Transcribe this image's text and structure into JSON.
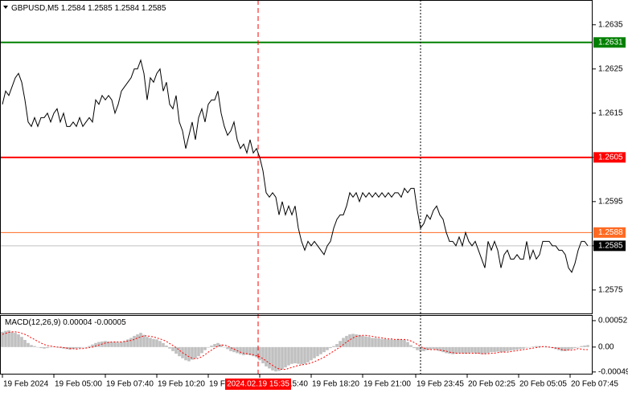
{
  "chart_data": [
    {
      "type": "line",
      "symbol": "GBPUSD,M5",
      "ohlc": [
        1.2584,
        1.2585,
        1.2584,
        1.2585
      ],
      "xlim": [
        132.5,
        1975
      ],
      "ylim": [
        1.25697,
        1.26406
      ],
      "yticks": [
        1.2575,
        1.2585,
        1.2595,
        1.2605,
        1.2615,
        1.2625,
        1.2635
      ],
      "x": [
        140,
        150,
        160,
        170,
        180,
        190,
        200,
        210,
        220,
        230,
        240,
        250,
        260,
        270,
        280,
        290,
        300,
        310,
        320,
        330,
        340,
        350,
        360,
        370,
        380,
        390,
        400,
        410,
        420,
        430,
        440,
        450,
        460,
        470,
        480,
        490,
        500,
        510,
        520,
        530,
        540,
        550,
        560,
        570,
        580,
        590,
        600,
        610,
        620,
        630,
        640,
        650,
        660,
        670,
        680,
        690,
        700,
        710,
        720,
        730,
        740,
        750,
        760,
        770,
        780,
        790,
        800,
        810,
        820,
        830,
        840,
        850,
        860,
        870,
        880,
        890,
        900,
        910,
        920,
        930,
        940,
        950,
        960,
        970,
        980,
        990,
        1000,
        1010,
        1020,
        1030,
        1040,
        1050,
        1060,
        1070,
        1080,
        1090,
        1100,
        1110,
        1120,
        1130,
        1140,
        1150,
        1160,
        1170,
        1180,
        1190,
        1200,
        1210,
        1220,
        1230,
        1240,
        1250,
        1260,
        1270,
        1280,
        1290,
        1300,
        1310,
        1320,
        1330,
        1340,
        1350,
        1360,
        1370,
        1380,
        1390,
        1400,
        1410,
        1420,
        1430,
        1440,
        1450,
        1460,
        1470,
        1480,
        1490,
        1500,
        1510,
        1520,
        1530,
        1540,
        1550,
        1560,
        1570,
        1580,
        1590,
        1600,
        1610,
        1620,
        1630,
        1640,
        1650,
        1660,
        1670,
        1680,
        1690,
        1700,
        1710,
        1720,
        1730,
        1740,
        1750,
        1760,
        1770,
        1780,
        1790,
        1800,
        1810,
        1820,
        1830,
        1840,
        1850,
        1860,
        1870,
        1880,
        1890,
        1900,
        1910,
        1920,
        1930,
        1940,
        1950,
        1960
      ],
      "series": [
        {
          "color": "#000000",
          "values": [
            1.2617,
            1.262,
            1.2619,
            1.2621,
            1.2623,
            1.2624,
            1.2622,
            1.2618,
            1.2613,
            1.2612,
            1.2614,
            1.2612,
            1.2614,
            1.2614,
            1.2615,
            1.2613,
            1.2615,
            1.2616,
            1.2613,
            1.2615,
            1.2612,
            1.2612,
            1.2613,
            1.2612,
            1.2614,
            1.2612,
            1.2613,
            1.2614,
            1.2613,
            1.2618,
            1.2617,
            1.2619,
            1.2618,
            1.2619,
            1.2618,
            1.2615,
            1.2617,
            1.262,
            1.2621,
            1.2622,
            1.2623,
            1.2625,
            1.2625,
            1.2627,
            1.2624,
            1.2618,
            1.2623,
            1.2622,
            1.2624,
            1.2625,
            1.262,
            1.2622,
            1.2617,
            1.2616,
            1.2619,
            1.2613,
            1.2611,
            1.2607,
            1.261,
            1.2613,
            1.2609,
            1.2614,
            1.2616,
            1.2613,
            1.2617,
            1.2618,
            1.2618,
            1.262,
            1.2615,
            1.2612,
            1.261,
            1.2611,
            1.2613,
            1.2609,
            1.2607,
            1.2608,
            1.2606,
            1.2609,
            1.2606,
            1.2607,
            1.2605,
            1.2602,
            1.2597,
            1.2596,
            1.2597,
            1.2596,
            1.2592,
            1.2595,
            1.2592,
            1.2594,
            1.2592,
            1.2594,
            1.2589,
            1.2586,
            1.2584,
            1.2586,
            1.2585,
            1.2586,
            1.2585,
            1.2584,
            1.2583,
            1.2585,
            1.2586,
            1.2589,
            1.2591,
            1.2592,
            1.2592,
            1.2594,
            1.2597,
            1.2596,
            1.2597,
            1.2595,
            1.2597,
            1.2596,
            1.2597,
            1.2596,
            1.2597,
            1.2596,
            1.2597,
            1.2596,
            1.2597,
            1.2596,
            1.2597,
            1.2597,
            1.2596,
            1.2598,
            1.2597,
            1.2598,
            1.2598,
            1.2593,
            1.2589,
            1.259,
            1.2592,
            1.2591,
            1.2593,
            1.2594,
            1.2592,
            1.2591,
            1.2588,
            1.2586,
            1.2586,
            1.2585,
            1.2587,
            1.2585,
            1.2588,
            1.2586,
            1.2585,
            1.2586,
            1.2584,
            1.2582,
            1.258,
            1.2586,
            1.2584,
            1.2586,
            1.2584,
            1.258,
            1.2583,
            1.2584,
            1.2582,
            1.2582,
            1.2583,
            1.2582,
            1.2582,
            1.2586,
            1.2582,
            1.2584,
            1.2582,
            1.2583,
            1.2586,
            1.2586,
            1.2586,
            1.2585,
            1.2585,
            1.2584,
            1.2584,
            1.2583,
            1.258,
            1.2579,
            1.2581,
            1.2584,
            1.2586,
            1.2586,
            1.2585
          ]
        }
      ],
      "levels": [
        {
          "value": 1.2631,
          "color": "#008000",
          "width": 2
        },
        {
          "value": 1.2605,
          "color": "#ff0000",
          "width": 2
        },
        {
          "value": 1.2588,
          "color": "#ff6a22",
          "width": 1
        }
      ],
      "last_price": 1.2585,
      "vlines": [
        {
          "x": 935,
          "color": "#ff0000",
          "style": "dashed",
          "label": "2024.02.19 15:35"
        },
        {
          "x": 1440,
          "color": "#000000",
          "style": "dotted"
        }
      ]
    },
    {
      "type": "macd",
      "name": "MACD(12,26,9)",
      "indicator_values": [
        4e-05,
        -5e-05
      ],
      "ylim": [
        -0.00054,
        0.00063
      ],
      "yticks": [
        -0.00049,
        {
          "value": 0,
          "label": "0.00"
        },
        0.00052
      ],
      "xticks": [
        {
          "value": 140,
          "label": "19 Feb 2024"
        },
        {
          "value": 300,
          "label": "19 Feb 05:00"
        },
        {
          "value": 460,
          "label": "19 Feb 07:40"
        },
        {
          "value": 620,
          "label": "19 Feb 10:20"
        },
        {
          "value": 780,
          "label": "19 Feb 13:00"
        },
        {
          "value": 940,
          "label": "19 Feb 15:40"
        },
        {
          "value": 1100,
          "label": "19 Feb 18:20"
        },
        {
          "value": 1260,
          "label": "19 Feb 21:00"
        },
        {
          "value": 1425,
          "label": "19 Feb 23:45"
        },
        {
          "value": 1585,
          "label": "20 Feb 02:25"
        },
        {
          "value": 1745,
          "label": "20 Feb 05:05"
        },
        {
          "value": 1905,
          "label": "20 Feb 07:45"
        }
      ],
      "series": [
        {
          "color": "#c0c0c0",
          "values": [
            0.0003,
            0.00032,
            0.00033,
            0.0003,
            0.00028,
            0.00025,
            0.0002,
            0.00014,
            8e-05,
            4e-05,
            2e-05,
            0,
            -2e-05,
            -3e-05,
            -2e-05,
            0,
            1e-05,
            0,
            -2e-05,
            -3e-05,
            -4e-05,
            -5e-05,
            -4e-05,
            -3e-05,
            -2e-05,
            -1e-05,
            0,
            2e-05,
            5e-05,
            8e-05,
            0.0001,
            0.00011,
            0.00012,
            0.00011,
            0.0001,
            0.0001,
            9e-05,
            0.0001,
            0.00012,
            0.00015,
            0.00018,
            0.00022,
            0.00025,
            0.00028,
            0.00024,
            0.0002,
            0.00018,
            0.00016,
            0.00015,
            0.00012,
            8e-05,
            3e-05,
            -3e-05,
            -8e-05,
            -0.00013,
            -0.00018,
            -0.00022,
            -0.00026,
            -0.00028,
            -0.00025,
            -0.00022,
            -0.00018,
            -0.00012,
            -6e-05,
            -1e-05,
            3e-05,
            6e-05,
            8e-05,
            5e-05,
            0,
            -4e-05,
            -8e-05,
            -0.0001,
            -0.00012,
            -0.00014,
            -0.00016,
            -0.00015,
            -0.00016,
            -0.00018,
            -0.0002,
            -0.00026,
            -0.00032,
            -0.00038,
            -0.00042,
            -0.00046,
            -0.00048,
            -0.00047,
            -0.00044,
            -0.0004,
            -0.00036,
            -0.00033,
            -0.00032,
            -0.00033,
            -0.00034,
            -0.00033,
            -0.0003,
            -0.00026,
            -0.00022,
            -0.00018,
            -0.00014,
            -0.0001,
            -6e-05,
            -2e-05,
            2e-05,
            6e-05,
            0.00012,
            0.00018,
            0.00022,
            0.00025,
            0.00026,
            0.00025,
            0.00024,
            0.00022,
            0.00021,
            0.0002,
            0.00018,
            0.00018,
            0.00017,
            0.00016,
            0.00016,
            0.00015,
            0.00015,
            0.00014,
            0.00016,
            0.00015,
            0.00014,
            0.0001,
            4e-05,
            -2e-05,
            -6e-05,
            -8e-05,
            -8e-05,
            -6e-05,
            -5e-05,
            -4e-05,
            -6e-05,
            -8e-05,
            -0.0001,
            -0.00012,
            -0.00013,
            -0.00014,
            -0.00013,
            -0.00012,
            -0.00012,
            -0.00013,
            -0.00012,
            -0.00011,
            -0.00012,
            -0.00013,
            -0.00014,
            -0.00014,
            -0.00012,
            -0.0001,
            -0.0001,
            -9e-05,
            -0.0001,
            -0.0001,
            -8e-05,
            -7e-05,
            -6e-05,
            -5e-05,
            -4e-05,
            -3e-05,
            -1e-05,
            0,
            1e-05,
            2e-05,
            2e-05,
            1e-05,
            0,
            -1e-05,
            -2e-05,
            -4e-05,
            -6e-05,
            -8e-05,
            -8e-05,
            -6e-05,
            -4e-05,
            -2e-05,
            0,
            2e-05,
            3e-05,
            4e-05
          ]
        },
        {
          "color": "#ff0000",
          "values": [
            0.00025,
            0.00027,
            0.00029,
            0.0003,
            0.0003,
            0.00029,
            0.00027,
            0.00025,
            0.00022,
            0.00018,
            0.00015,
            0.00011,
            8e-05,
            5e-05,
            3e-05,
            2e-05,
            1e-05,
            0,
            0,
            -1e-05,
            -2e-05,
            -3e-05,
            -3e-05,
            -4e-05,
            -3e-05,
            -3e-05,
            -2e-05,
            -1e-05,
            0,
            2e-05,
            4e-05,
            6e-05,
            8e-05,
            9e-05,
            0.0001,
            0.0001,
            0.0001,
            0.0001,
            0.00011,
            0.00012,
            0.00013,
            0.00015,
            0.00018,
            0.0002,
            0.00022,
            0.00022,
            0.00021,
            0.0002,
            0.00018,
            0.00016,
            0.00014,
            0.00011,
            7e-05,
            3e-05,
            -1e-05,
            -6e-05,
            -0.00011,
            -0.00015,
            -0.00019,
            -0.00022,
            -0.00023,
            -0.00022,
            -0.00019,
            -0.00015,
            -0.0001,
            -6e-05,
            -2e-05,
            2e-05,
            4e-05,
            4e-05,
            2e-05,
            -1e-05,
            -4e-05,
            -7e-05,
            -0.0001,
            -0.00012,
            -0.00013,
            -0.00014,
            -0.00015,
            -0.00017,
            -0.00019,
            -0.00023,
            -0.00027,
            -0.00032,
            -0.00036,
            -0.0004,
            -0.00043,
            -0.00044,
            -0.00044,
            -0.00042,
            -0.0004,
            -0.00038,
            -0.00036,
            -0.00035,
            -0.00034,
            -0.00033,
            -0.00031,
            -0.00029,
            -0.00026,
            -0.00023,
            -0.0002,
            -0.00016,
            -0.00012,
            -8e-05,
            -4e-05,
            0,
            5e-05,
            0.0001,
            0.00014,
            0.00018,
            0.00021,
            0.00022,
            0.00023,
            0.00023,
            0.00022,
            0.00021,
            0.0002,
            0.00019,
            0.00018,
            0.00017,
            0.00016,
            0.00016,
            0.00015,
            0.00015,
            0.00015,
            0.00015,
            0.00014,
            0.00012,
            9e-05,
            5e-05,
            1e-05,
            -2e-05,
            -4e-05,
            -5e-05,
            -5e-05,
            -5e-05,
            -6e-05,
            -7e-05,
            -8e-05,
            -0.0001,
            -0.00011,
            -0.00012,
            -0.00012,
            -0.00012,
            -0.00012,
            -0.00012,
            -0.00012,
            -0.00012,
            -0.00012,
            -0.00013,
            -0.00013,
            -0.00013,
            -0.00012,
            -0.00012,
            -0.00011,
            -0.0001,
            -0.0001,
            -0.0001,
            -9e-05,
            -8e-05,
            -7e-05,
            -6e-05,
            -5e-05,
            -4e-05,
            -3e-05,
            -2e-05,
            -1e-05,
            0,
            1e-05,
            1e-05,
            0,
            -1e-05,
            -2e-05,
            -3e-05,
            -5e-05,
            -6e-05,
            -6e-05,
            -6e-05,
            -5e-05,
            -3e-05,
            -4e-05,
            -5e-05,
            -5e-05
          ]
        }
      ]
    }
  ]
}
